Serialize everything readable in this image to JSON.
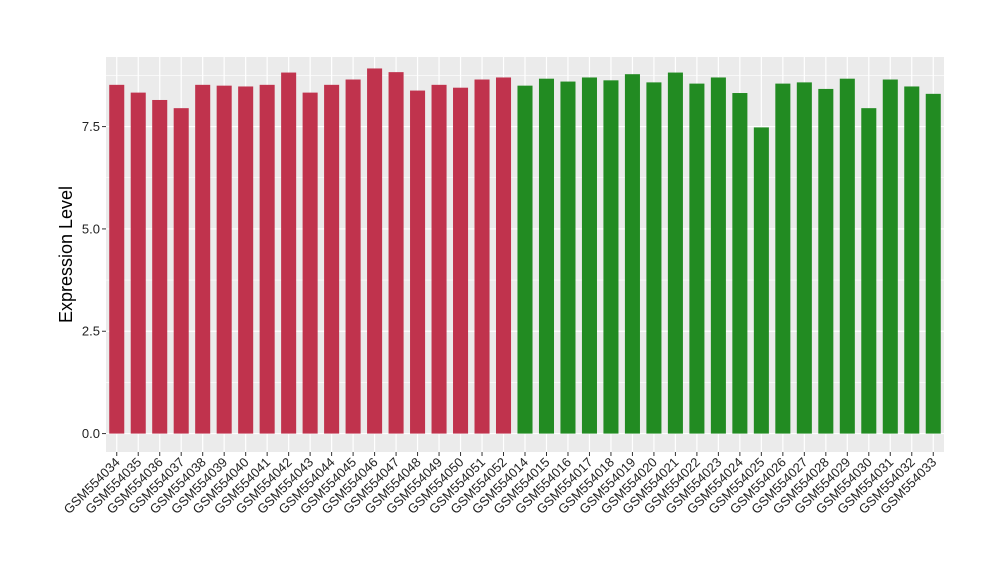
{
  "chart_data": {
    "type": "bar",
    "title": "",
    "xlabel": "",
    "ylabel": "Expression Level",
    "ylim": [
      -0.45,
      9.2
    ],
    "yticks": [
      0.0,
      2.5,
      5.0,
      7.5
    ],
    "ytick_labels": [
      "0.0",
      "2.5",
      "5.0",
      "7.5"
    ],
    "grid": true,
    "legend": "none",
    "colors": {
      "group1": "#c0334d",
      "group2": "#228b22",
      "panel": "#ebebeb",
      "gridline": "#ffffff"
    },
    "categories": [
      "GSM554034",
      "GSM554035",
      "GSM554036",
      "GSM554037",
      "GSM554038",
      "GSM554039",
      "GSM554040",
      "GSM554041",
      "GSM554042",
      "GSM554043",
      "GSM554044",
      "GSM554045",
      "GSM554046",
      "GSM554047",
      "GSM554048",
      "GSM554049",
      "GSM554050",
      "GSM554051",
      "GSM554052",
      "GSM554014",
      "GSM554015",
      "GSM554016",
      "GSM554017",
      "GSM554018",
      "GSM554019",
      "GSM554020",
      "GSM554021",
      "GSM554022",
      "GSM554023",
      "GSM554024",
      "GSM554025",
      "GSM554026",
      "GSM554027",
      "GSM554028",
      "GSM554029",
      "GSM554030",
      "GSM554031",
      "GSM554032",
      "GSM554033"
    ],
    "values": [
      8.52,
      8.33,
      8.15,
      7.95,
      8.52,
      8.5,
      8.48,
      8.52,
      8.82,
      8.33,
      8.52,
      8.65,
      8.92,
      8.83,
      8.38,
      8.52,
      8.45,
      8.65,
      8.7,
      8.5,
      8.67,
      8.6,
      8.7,
      8.63,
      8.78,
      8.58,
      8.82,
      8.55,
      8.7,
      8.32,
      7.48,
      8.55,
      8.58,
      8.42,
      8.67,
      7.95,
      8.65,
      8.48,
      8.3
    ],
    "groups": [
      1,
      1,
      1,
      1,
      1,
      1,
      1,
      1,
      1,
      1,
      1,
      1,
      1,
      1,
      1,
      1,
      1,
      1,
      1,
      2,
      2,
      2,
      2,
      2,
      2,
      2,
      2,
      2,
      2,
      2,
      2,
      2,
      2,
      2,
      2,
      2,
      2,
      2,
      2
    ]
  }
}
